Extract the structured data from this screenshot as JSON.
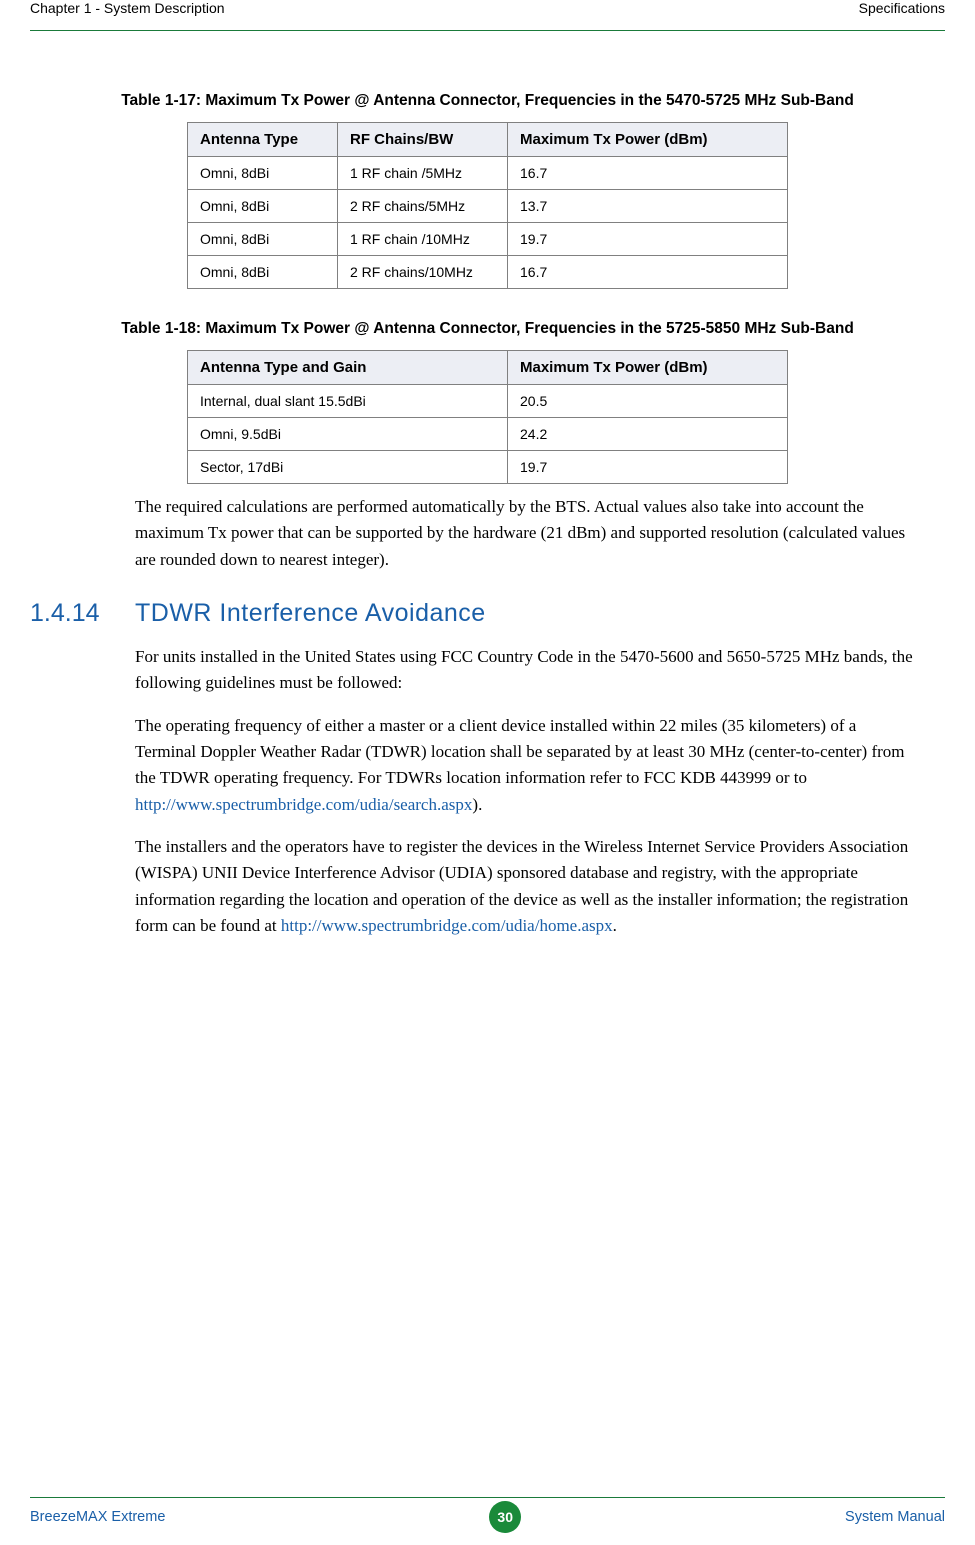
{
  "header": {
    "left": "Chapter 1 - System Description",
    "right": "Specifications"
  },
  "table17": {
    "caption": "Table 1-17: Maximum Tx Power @ Antenna Connector, Frequencies in the 5470-5725 MHz Sub-Band",
    "columns": [
      "Antenna Type",
      "RF Chains/BW",
      "Maximum Tx Power (dBm)"
    ],
    "col_widths": [
      "150px",
      "170px",
      "280px"
    ],
    "rows": [
      [
        "Omni, 8dBi",
        "1 RF chain /5MHz",
        "16.7"
      ],
      [
        "Omni, 8dBi",
        "2 RF chains/5MHz",
        "13.7"
      ],
      [
        "Omni, 8dBi",
        "1 RF chain /10MHz",
        "19.7"
      ],
      [
        "Omni, 8dBi",
        "2 RF chains/10MHz",
        "16.7"
      ]
    ]
  },
  "table18": {
    "caption": "Table 1-18: Maximum Tx Power @ Antenna Connector, Frequencies in the 5725-5850 MHz Sub-Band",
    "columns": [
      "Antenna Type and Gain",
      "Maximum Tx Power (dBm)"
    ],
    "col_widths": [
      "320px",
      "280px"
    ],
    "rows": [
      [
        "Internal, dual slant 15.5dBi",
        "20.5"
      ],
      [
        "Omni, 9.5dBi",
        "24.2"
      ],
      [
        "Sector, 17dBi",
        "19.7"
      ]
    ]
  },
  "para1": "The required calculations are performed automatically by the BTS. Actual values also take into account the maximum Tx power that can be supported by the hardware (21 dBm) and supported resolution (calculated values are rounded down to nearest integer).",
  "section": {
    "num": "1.4.14",
    "title": "TDWR Interference Avoidance"
  },
  "para2": "For units installed in the United States using FCC Country Code in the 5470-5600 and 5650-5725 MHz bands, the following guidelines must be followed:",
  "para3_a": "The operating frequency of either a master or a client device installed within 22 miles (35 kilometers) of a Terminal Doppler Weather Radar (TDWR) location shall be separated by at least 30 MHz (center-to-center) from the TDWR operating frequency. For TDWRs location information refer to FCC KDB 443999 or to ",
  "para3_link": "http://www.spectrumbridge.com/udia/search.aspx",
  "para3_b": ").",
  "para4_a": "The installers and the operators have to register the devices in the Wireless Internet Service Providers Association (WISPA) UNII Device Interference Advisor (UDIA) sponsored database and registry, with the appropriate information regarding the location and operation of the device as well as the installer information; the registration form can be found at ",
  "para4_link": "http://www.spectrumbridge.com/udia/home.aspx",
  "para4_b": ".",
  "footer": {
    "left": "BreezeMAX Extreme",
    "page": "30",
    "right": "System Manual"
  },
  "colors": {
    "accent_green": "#1a7a3a",
    "badge_green": "#1a8a3a",
    "link_blue": "#1a5fa8",
    "header_bg": "#eceef4",
    "border_gray": "#808080"
  }
}
